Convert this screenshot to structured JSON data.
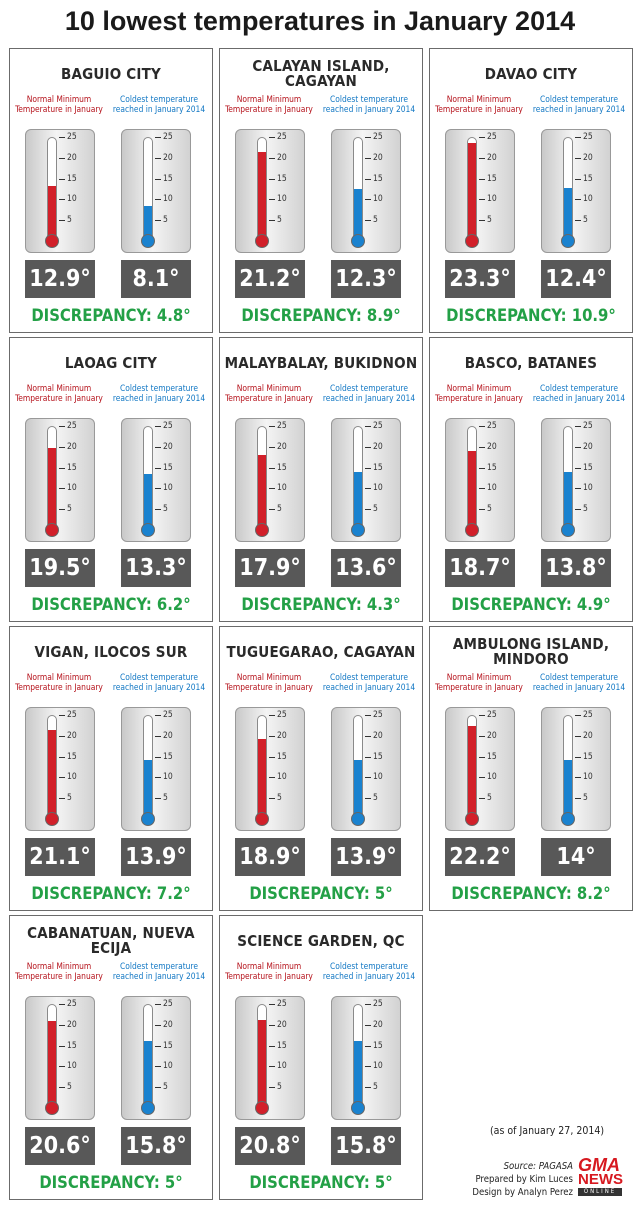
{
  "title": "10 lowest temperatures in January 2014",
  "labels": {
    "normal": "Normal Minimum Temperature in January",
    "coldest": "Coldest temperature reached in January 2014"
  },
  "colors": {
    "normal": "#d2202a",
    "coldest": "#1a82cf",
    "discrepancy": "#23a046",
    "value_box": "#585858"
  },
  "chart_data": {
    "type": "thermometer",
    "title": "10 lowest temperatures in January 2014",
    "ticks": [
      5,
      10,
      15,
      20,
      25
    ],
    "scale": [
      0,
      25
    ],
    "series": [
      {
        "name": "Normal Minimum Temperature in January",
        "values": [
          12.9,
          21.2,
          23.3,
          19.5,
          17.9,
          18.7,
          21.1,
          18.9,
          22.2,
          20.6,
          20.8
        ]
      },
      {
        "name": "Coldest temperature reached in January 2014",
        "values": [
          8.1,
          12.3,
          12.4,
          13.3,
          13.6,
          13.8,
          13.9,
          13.9,
          14,
          15.8,
          15.8
        ]
      }
    ],
    "stations": [
      {
        "city": "BAGUIO CITY",
        "normal": 12.9,
        "normal_label": "12.9°",
        "coldest": 8.1,
        "coldest_label": "8.1°",
        "discrepancy": "DISCREPANCY: 4.8°"
      },
      {
        "city": "CALAYAN ISLAND, CAGAYAN",
        "normal": 21.2,
        "normal_label": "21.2°",
        "coldest": 12.3,
        "coldest_label": "12.3°",
        "discrepancy": "DISCREPANCY: 8.9°"
      },
      {
        "city": "DAVAO CITY",
        "normal": 23.3,
        "normal_label": "23.3°",
        "coldest": 12.4,
        "coldest_label": "12.4°",
        "discrepancy": "DISCREPANCY: 10.9°"
      },
      {
        "city": "LAOAG CITY",
        "normal": 19.5,
        "normal_label": "19.5°",
        "coldest": 13.3,
        "coldest_label": "13.3°",
        "discrepancy": "DISCREPANCY: 6.2°"
      },
      {
        "city": "MALAYBALAY, BUKIDNON",
        "normal": 17.9,
        "normal_label": "17.9°",
        "coldest": 13.6,
        "coldest_label": "13.6°",
        "discrepancy": "DISCREPANCY: 4.3°"
      },
      {
        "city": "BASCO, BATANES",
        "normal": 18.7,
        "normal_label": "18.7°",
        "coldest": 13.8,
        "coldest_label": "13.8°",
        "discrepancy": "DISCREPANCY: 4.9°"
      },
      {
        "city": "VIGAN, ILOCOS SUR",
        "normal": 21.1,
        "normal_label": "21.1°",
        "coldest": 13.9,
        "coldest_label": "13.9°",
        "discrepancy": "DISCREPANCY: 7.2°"
      },
      {
        "city": "TUGUEGARAO, CAGAYAN",
        "normal": 18.9,
        "normal_label": "18.9°",
        "coldest": 13.9,
        "coldest_label": "13.9°",
        "discrepancy": "DISCREPANCY: 5°"
      },
      {
        "city": "AMBULONG ISLAND, MINDORO",
        "normal": 22.2,
        "normal_label": "22.2°",
        "coldest": 14,
        "coldest_label": "14°",
        "discrepancy": "DISCREPANCY: 8.2°"
      },
      {
        "city": "CABANATUAN, NUEVA ECIJA",
        "normal": 20.6,
        "normal_label": "20.6°",
        "coldest": 15.8,
        "coldest_label": "15.8°",
        "discrepancy": "DISCREPANCY: 5°"
      },
      {
        "city": "SCIENCE GARDEN, QC",
        "normal": 20.8,
        "normal_label": "20.8°",
        "coldest": 15.8,
        "coldest_label": "15.8°",
        "discrepancy": "DISCREPANCY: 5°"
      }
    ]
  },
  "footer": {
    "as_of": "(as of January 27, 2014)",
    "source": "Source: PAGASA",
    "prepared": "Prepared by Kim Luces",
    "design": "Design by Analyn Perez"
  },
  "logo": {
    "top": "GMA",
    "mid": "NEWS",
    "bottom": "ONLINE"
  }
}
